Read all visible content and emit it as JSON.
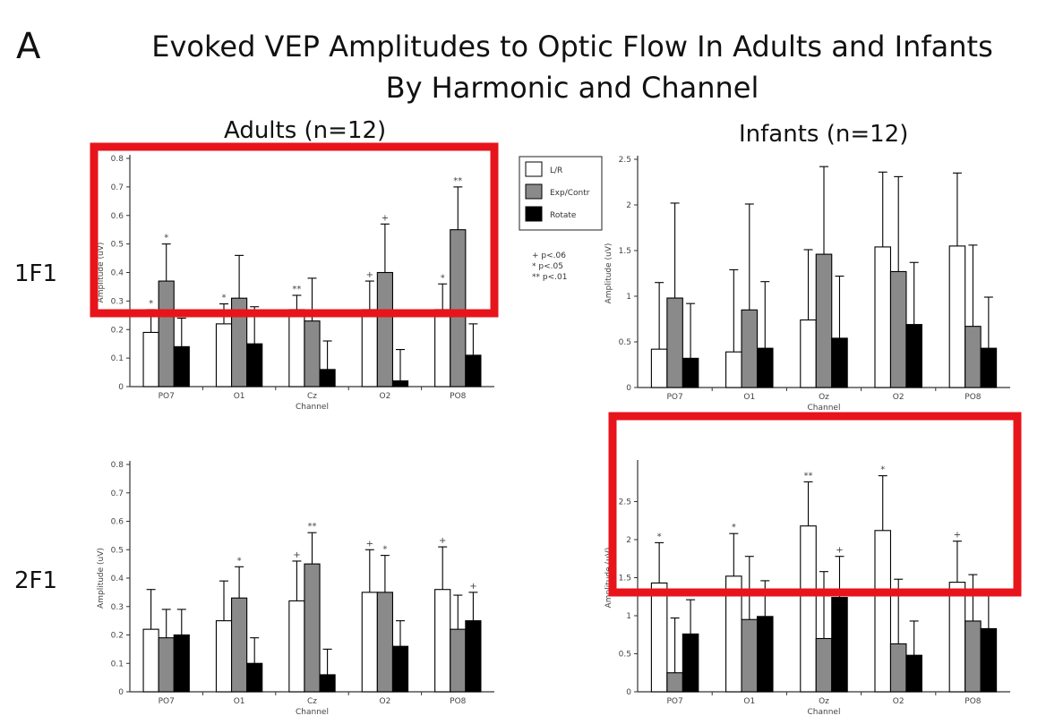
{
  "figure": {
    "panel_letter": "A",
    "title_line1": "Evoked VEP Amplitudes to Optic Flow In Adults and Infants",
    "title_line2": "By Harmonic and Channel",
    "group_titles": [
      "Adults (n=12)",
      "Infants (n=12)"
    ],
    "row_labels": [
      "1F1",
      "2F1"
    ]
  },
  "legend": {
    "entries": [
      {
        "name": "L/R",
        "color": "#ffffff"
      },
      {
        "name": "Exp/Contr",
        "color": "#8a8a8a"
      },
      {
        "name": "Rotate",
        "color": "#000000"
      }
    ],
    "significance": [
      "+ p<.06",
      "* p<.05",
      "** p<.01"
    ]
  },
  "highlight_color": "#e8141b",
  "chart_data": [
    {
      "type": "bar",
      "id": "adults-1f1",
      "categories": [
        "PO7",
        "O1",
        "Cz",
        "O2",
        "PO8"
      ],
      "ylim": [
        0,
        0.8
      ],
      "yticks": [
        "0",
        "0.1",
        "0.2",
        "0.3",
        "0.4",
        "0.5",
        "0.6",
        "0.7",
        "0.8"
      ],
      "xlabel": "Channel",
      "ylabel": "Amplitude (uV)",
      "series": [
        {
          "name": "L/R",
          "values": [
            0.19,
            0.22,
            0.27,
            0.27,
            0.27
          ],
          "errors": [
            0.08,
            0.07,
            0.05,
            0.1,
            0.09
          ],
          "sig": [
            "*",
            "*",
            "**",
            "+",
            "*"
          ]
        },
        {
          "name": "Exp/Contr",
          "values": [
            0.37,
            0.31,
            0.23,
            0.4,
            0.55
          ],
          "errors": [
            0.13,
            0.15,
            0.15,
            0.17,
            0.15
          ],
          "sig": [
            "*",
            "",
            "",
            "+",
            "**"
          ]
        },
        {
          "name": "Rotate",
          "values": [
            0.14,
            0.15,
            0.06,
            0.02,
            0.11
          ],
          "errors": [
            0.1,
            0.13,
            0.1,
            0.11,
            0.11
          ],
          "sig": [
            "",
            "",
            "",
            "",
            ""
          ]
        }
      ]
    },
    {
      "type": "bar",
      "id": "infants-1f1",
      "categories": [
        "PO7",
        "O1",
        "Oz",
        "O2",
        "PO8"
      ],
      "ylim": [
        0,
        2.5
      ],
      "yticks": [
        "0",
        "0.5",
        "1",
        "1.5",
        "2",
        "2.5"
      ],
      "xlabel": "Channel",
      "ylabel": "Amplitude (uV)",
      "series": [
        {
          "name": "L/R",
          "values": [
            0.42,
            0.39,
            0.74,
            1.54,
            1.55
          ],
          "errors": [
            0.73,
            0.9,
            0.77,
            0.82,
            0.8
          ],
          "sig": [
            "",
            "",
            "",
            "",
            ""
          ]
        },
        {
          "name": "Exp/Contr",
          "values": [
            0.98,
            0.85,
            1.46,
            1.27,
            0.67
          ],
          "errors": [
            1.04,
            1.16,
            0.96,
            1.04,
            0.89
          ],
          "sig": [
            "",
            "",
            "",
            "",
            ""
          ]
        },
        {
          "name": "Rotate",
          "values": [
            0.32,
            0.43,
            0.54,
            0.69,
            0.43
          ],
          "errors": [
            0.6,
            0.73,
            0.68,
            0.68,
            0.56
          ],
          "sig": [
            "",
            "",
            "",
            "",
            ""
          ]
        }
      ]
    },
    {
      "type": "bar",
      "id": "adults-2f1",
      "categories": [
        "PO7",
        "O1",
        "Cz",
        "O2",
        "PO8"
      ],
      "ylim": [
        0,
        0.8
      ],
      "yticks": [
        "0",
        "0.1",
        "0.2",
        "0.3",
        "0.4",
        "0.5",
        "0.6",
        "0.7",
        "0.8"
      ],
      "xlabel": "Channel",
      "ylabel": "Amplitude (uV)",
      "series": [
        {
          "name": "L/R",
          "values": [
            0.22,
            0.25,
            0.32,
            0.35,
            0.36
          ],
          "errors": [
            0.14,
            0.14,
            0.14,
            0.15,
            0.15
          ],
          "sig": [
            "",
            "",
            "+",
            "+",
            "+"
          ]
        },
        {
          "name": "Exp/Contr",
          "values": [
            0.19,
            0.33,
            0.45,
            0.35,
            0.22
          ],
          "errors": [
            0.1,
            0.11,
            0.11,
            0.13,
            0.12
          ],
          "sig": [
            "",
            "*",
            "**",
            "*",
            ""
          ]
        },
        {
          "name": "Rotate",
          "values": [
            0.2,
            0.1,
            0.06,
            0.16,
            0.25
          ],
          "errors": [
            0.09,
            0.09,
            0.09,
            0.09,
            0.1
          ],
          "sig": [
            "",
            "",
            "",
            "",
            "+"
          ]
        }
      ]
    },
    {
      "type": "bar",
      "id": "infants-2f1",
      "categories": [
        "PO7",
        "O1",
        "Oz",
        "O2",
        "PO8"
      ],
      "ylim": [
        0,
        3.0
      ],
      "yticks": [
        "0",
        "0.5",
        "1",
        "1.5",
        "2",
        "2.5"
      ],
      "xlabel": "Channel",
      "ylabel": "Amplitude (uV)",
      "series": [
        {
          "name": "L/R",
          "values": [
            1.43,
            1.52,
            2.18,
            2.12,
            1.44
          ],
          "errors": [
            0.53,
            0.56,
            0.58,
            0.72,
            0.54
          ],
          "sig": [
            "*",
            "*",
            "**",
            "*",
            "+"
          ]
        },
        {
          "name": "Exp/Contr",
          "values": [
            0.25,
            0.95,
            0.7,
            0.63,
            0.93
          ],
          "errors": [
            0.72,
            0.83,
            0.88,
            0.85,
            0.61
          ],
          "sig": [
            "",
            "",
            "",
            "",
            ""
          ]
        },
        {
          "name": "Rotate",
          "values": [
            0.76,
            0.99,
            1.24,
            0.48,
            0.83
          ],
          "errors": [
            0.45,
            0.47,
            0.54,
            0.45,
            0.46
          ],
          "sig": [
            "",
            "",
            "+",
            "",
            ""
          ]
        }
      ]
    }
  ]
}
